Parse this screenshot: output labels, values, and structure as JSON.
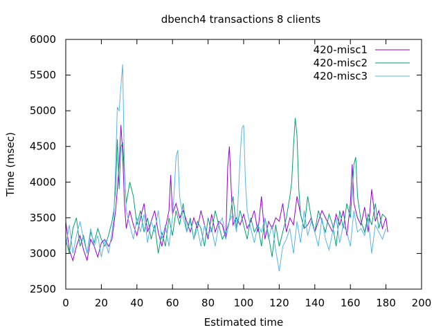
{
  "chart_data": {
    "type": "line",
    "title": "dbench4 transactions 8 clients",
    "xlabel": "Estimated time",
    "ylabel": "Time (msec)",
    "xlim": [
      0,
      200
    ],
    "ylim": [
      2500,
      6000
    ],
    "xticks": [
      0,
      20,
      40,
      60,
      80,
      100,
      120,
      140,
      160,
      180,
      200
    ],
    "yticks": [
      2500,
      3000,
      3500,
      4000,
      4500,
      5000,
      5500,
      6000
    ],
    "grid": false,
    "legend": "top-right",
    "series": [
      {
        "name": "420-misc1",
        "color": "#9400d3",
        "x": [
          0,
          2,
          4,
          6,
          8,
          10,
          12,
          14,
          16,
          18,
          20,
          22,
          24,
          26,
          27,
          28,
          29,
          30,
          31,
          32,
          33,
          34,
          36,
          38,
          40,
          42,
          44,
          46,
          48,
          50,
          52,
          54,
          56,
          58,
          59,
          60,
          62,
          64,
          66,
          68,
          70,
          72,
          74,
          76,
          78,
          80,
          82,
          84,
          86,
          88,
          90,
          91,
          92,
          93,
          94,
          96,
          98,
          100,
          102,
          104,
          106,
          108,
          110,
          112,
          114,
          116,
          118,
          120,
          122,
          124,
          126,
          128,
          130,
          132,
          134,
          136,
          138,
          140,
          142,
          144,
          146,
          148,
          150,
          152,
          154,
          156,
          158,
          160,
          161,
          162,
          164,
          166,
          168,
          170,
          172,
          174,
          176,
          178,
          180,
          181
        ],
        "values": [
          3450,
          3050,
          2900,
          3100,
          3250,
          3050,
          2900,
          3200,
          3100,
          2950,
          3150,
          3200,
          3100,
          3200,
          3400,
          3600,
          3900,
          4250,
          4800,
          4400,
          3700,
          3350,
          3600,
          3400,
          3250,
          3500,
          3700,
          3300,
          3450,
          3600,
          3300,
          3100,
          3350,
          3600,
          4100,
          3550,
          3700,
          3500,
          3600,
          3450,
          3300,
          3500,
          3350,
          3600,
          3400,
          3200,
          3550,
          3300,
          3450,
          3400,
          3200,
          4200,
          4500,
          3900,
          3400,
          3500,
          3400,
          3550,
          3350,
          3450,
          3600,
          3300,
          3800,
          3200,
          3450,
          3350,
          3500,
          3450,
          3700,
          3300,
          3500,
          3400,
          3800,
          3550,
          3350,
          3400,
          3500,
          3300,
          3450,
          3600,
          3500,
          3400,
          3300,
          3550,
          3400,
          3600,
          3250,
          3700,
          4250,
          3700,
          3500,
          3400,
          3650,
          3300,
          3900,
          3450,
          3600,
          3350,
          3500,
          3300
        ]
      },
      {
        "name": "420-misc2",
        "color": "#009e73",
        "x": [
          0,
          2,
          4,
          6,
          8,
          10,
          12,
          14,
          16,
          18,
          20,
          22,
          24,
          26,
          27,
          28,
          29,
          30,
          31,
          32,
          34,
          36,
          38,
          40,
          42,
          44,
          46,
          48,
          50,
          52,
          54,
          56,
          58,
          60,
          62,
          64,
          66,
          68,
          70,
          72,
          74,
          76,
          78,
          80,
          82,
          84,
          86,
          88,
          90,
          92,
          94,
          96,
          98,
          100,
          102,
          104,
          106,
          108,
          110,
          112,
          114,
          116,
          118,
          120,
          122,
          124,
          126,
          127,
          128,
          129,
          130,
          131,
          132,
          134,
          136,
          138,
          140,
          142,
          144,
          146,
          148,
          150,
          152,
          154,
          156,
          158,
          160,
          162,
          163,
          164,
          166,
          168,
          170,
          172,
          174,
          176,
          178,
          180
        ],
        "values": [
          3200,
          3000,
          3350,
          3500,
          3100,
          3250,
          3000,
          3300,
          3150,
          3350,
          3200,
          3100,
          3250,
          3450,
          3600,
          3900,
          4600,
          3900,
          4500,
          4550,
          3700,
          4000,
          3800,
          3400,
          3600,
          3300,
          3500,
          3200,
          3400,
          3000,
          3300,
          3100,
          3500,
          3250,
          3600,
          3400,
          3700,
          3300,
          3500,
          3200,
          3450,
          3350,
          3100,
          3500,
          3300,
          3600,
          3400,
          3200,
          3300,
          3450,
          3800,
          3350,
          3600,
          3400,
          3200,
          3500,
          3300,
          3400,
          3100,
          3500,
          3250,
          2950,
          3400,
          3100,
          3300,
          3500,
          3800,
          4000,
          4500,
          4900,
          4650,
          3900,
          3550,
          3350,
          3800,
          3500,
          3300,
          3600,
          3450,
          3300,
          3550,
          3400,
          3100,
          3600,
          3350,
          3700,
          3500,
          4250,
          4350,
          3800,
          3450,
          3300,
          3550,
          3400,
          3700,
          3350,
          3550,
          3500
        ]
      },
      {
        "name": "420-misc3",
        "color": "#56b4e9",
        "x": [
          0,
          2,
          4,
          6,
          8,
          10,
          12,
          14,
          16,
          18,
          20,
          22,
          24,
          26,
          27,
          28,
          29,
          30,
          31,
          32,
          33,
          34,
          36,
          38,
          40,
          42,
          44,
          46,
          48,
          50,
          52,
          54,
          56,
          58,
          60,
          61,
          62,
          63,
          64,
          66,
          68,
          70,
          72,
          74,
          76,
          78,
          80,
          82,
          84,
          86,
          88,
          90,
          92,
          94,
          96,
          98,
          99,
          100,
          101,
          102,
          104,
          106,
          108,
          110,
          112,
          114,
          116,
          118,
          120,
          122,
          124,
          126,
          128,
          130,
          132,
          134,
          136,
          138,
          140,
          142,
          144,
          146,
          148,
          150,
          152,
          154,
          156,
          158,
          160,
          162,
          164,
          166,
          168,
          170,
          172,
          174,
          176,
          178,
          180
        ],
        "values": [
          3100,
          3400,
          3000,
          3250,
          3450,
          3200,
          3000,
          3350,
          3100,
          3250,
          2950,
          3200,
          3000,
          3300,
          3500,
          4200,
          5050,
          5000,
          5350,
          5650,
          4200,
          3600,
          3400,
          3200,
          3500,
          3300,
          3550,
          3150,
          3450,
          3300,
          3600,
          3200,
          3400,
          3100,
          3500,
          3900,
          4350,
          4450,
          3800,
          3500,
          3300,
          3450,
          3200,
          3350,
          3100,
          3400,
          3250,
          3350,
          3100,
          3400,
          3500,
          3200,
          3450,
          3550,
          3300,
          4350,
          4750,
          4800,
          4000,
          3600,
          3350,
          3150,
          3400,
          3300,
          3500,
          3200,
          3400,
          3050,
          2750,
          3100,
          3200,
          3350,
          3000,
          3450,
          3150,
          3600,
          3250,
          3450,
          3300,
          3100,
          3500,
          3200,
          3050,
          3300,
          3500,
          3150,
          3400,
          3300,
          3100,
          3600,
          3300,
          3350,
          3250,
          3500,
          3000,
          3400,
          3300,
          3200,
          3350
        ]
      }
    ]
  }
}
